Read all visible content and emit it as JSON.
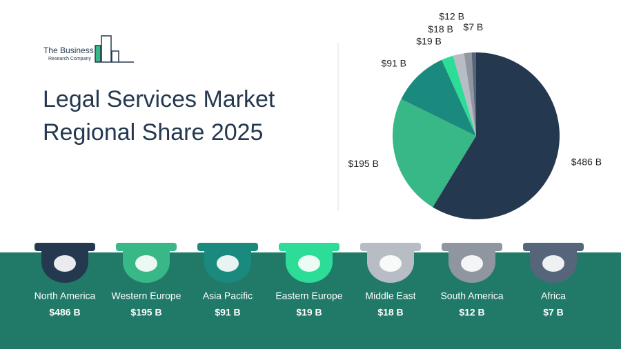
{
  "logo": {
    "line1": "The Business",
    "line2": "Research Company"
  },
  "chart_data": {
    "type": "pie",
    "title": "Legal Services Market Regional Share 2025",
    "categories": [
      "North America",
      "Western Europe",
      "Asia Pacific",
      "Eastern Europe",
      "Middle East",
      "South America",
      "Africa"
    ],
    "values": [
      486,
      195,
      91,
      19,
      18,
      12,
      7
    ],
    "value_labels": [
      "$486 B",
      "$195 B",
      "$91 B",
      "$19 B",
      "$18 B",
      "$12 B",
      "$7 B"
    ],
    "colors": [
      "#24384f",
      "#37b886",
      "#1b8a7e",
      "#2ddc96",
      "#b8bcc4",
      "#8f969f",
      "#56657a"
    ]
  }
}
